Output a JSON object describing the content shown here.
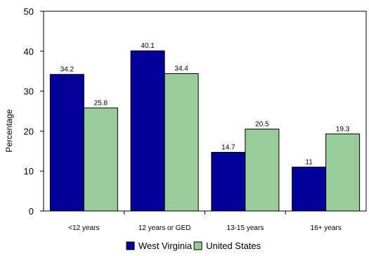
{
  "chart_data": {
    "type": "bar",
    "categories": [
      "<12 years",
      "12 years or GED",
      "13-15 years",
      "16+ years"
    ],
    "series": [
      {
        "name": "West Virginia",
        "values": [
          34.2,
          40.1,
          14.7,
          11
        ],
        "color": "#000099"
      },
      {
        "name": "United States",
        "values": [
          25.8,
          34.4,
          20.5,
          19.3
        ],
        "color": "#99cc99"
      }
    ],
    "ylabel": "Percentage",
    "ylim": [
      0,
      50
    ],
    "yticks": [
      0,
      10,
      20,
      30,
      40,
      50
    ],
    "data_labels": true,
    "grid": false,
    "legend": "bottom"
  }
}
